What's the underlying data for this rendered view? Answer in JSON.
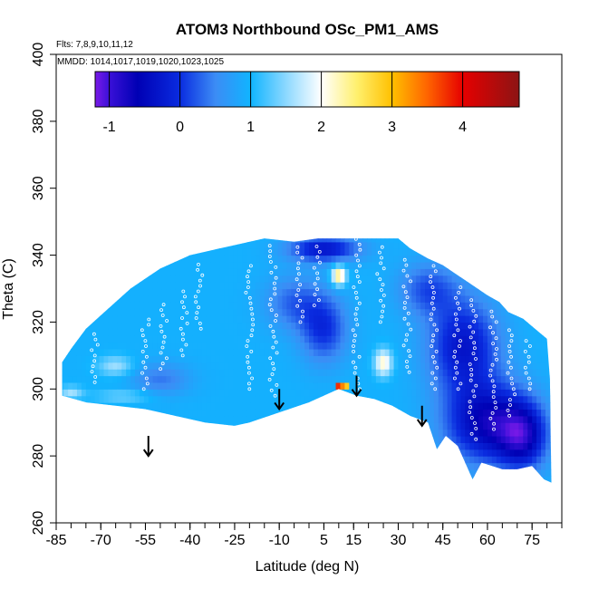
{
  "chart_data": {
    "type": "heatmap",
    "title": "ATOM3 Northbound OSc_PM1_AMS",
    "subtitle_flights": "Flts: 7,8,9,10,11,12",
    "subtitle_dates": "MMDD: 1014,1017,1019,1020,1023,1025",
    "xlabel": "Latitude (deg N)",
    "ylabel": "Theta (C)",
    "xlim": [
      -85,
      85
    ],
    "ylim": [
      260,
      400
    ],
    "x_ticks": [
      -85,
      -70,
      -55,
      -40,
      -25,
      -10,
      5,
      15,
      30,
      45,
      60,
      75
    ],
    "x_tick_labels": [
      "-85",
      "-70",
      "-55",
      "-40",
      "-25",
      "-10",
      "5",
      "15",
      "30",
      "45",
      "60",
      "75"
    ],
    "x_minor_step": 5,
    "y_ticks": [
      260,
      280,
      300,
      320,
      340,
      360,
      380,
      400
    ],
    "y_tick_labels": [
      "260",
      "280",
      "300",
      "320",
      "340",
      "360",
      "380",
      "400"
    ],
    "colorbar": {
      "range": [
        -1.2,
        4.8
      ],
      "ticks": [
        -1,
        0,
        1,
        2,
        3,
        4
      ],
      "tick_labels": [
        "-1",
        "0",
        "1",
        "2",
        "3",
        "4"
      ],
      "stops": [
        {
          "v": -1.2,
          "c": "#7a1ae8"
        },
        {
          "v": -1.0,
          "c": "#3a10d8"
        },
        {
          "v": -0.6,
          "c": "#0000b4"
        },
        {
          "v": 0.0,
          "c": "#0a2ce0"
        },
        {
          "v": 0.5,
          "c": "#3c8cf5"
        },
        {
          "v": 1.0,
          "c": "#10b4ff"
        },
        {
          "v": 1.5,
          "c": "#8cd8ff"
        },
        {
          "v": 2.0,
          "c": "#ffffff"
        },
        {
          "v": 2.5,
          "c": "#fff06e"
        },
        {
          "v": 3.0,
          "c": "#ffc000"
        },
        {
          "v": 3.5,
          "c": "#ff6400"
        },
        {
          "v": 4.0,
          "c": "#e60000"
        },
        {
          "v": 4.8,
          "c": "#8c1414"
        }
      ]
    },
    "coverage_envelope": [
      [
        -83,
        298
      ],
      [
        -83,
        308
      ],
      [
        -80,
        312
      ],
      [
        -75,
        318
      ],
      [
        -70,
        322
      ],
      [
        -65,
        326
      ],
      [
        -60,
        330
      ],
      [
        -55,
        333
      ],
      [
        -50,
        336
      ],
      [
        -45,
        338
      ],
      [
        -40,
        340
      ],
      [
        -35,
        341
      ],
      [
        -30,
        342
      ],
      [
        -25,
        343
      ],
      [
        -15,
        345
      ],
      [
        -5,
        344
      ],
      [
        3,
        345
      ],
      [
        10,
        345
      ],
      [
        20,
        345
      ],
      [
        30,
        345
      ],
      [
        34,
        342
      ],
      [
        40,
        339
      ],
      [
        45,
        337
      ],
      [
        50,
        334
      ],
      [
        55,
        331
      ],
      [
        60,
        328
      ],
      [
        64,
        326
      ],
      [
        67,
        323
      ],
      [
        72,
        321
      ],
      [
        76,
        318
      ],
      [
        80,
        315
      ],
      [
        81,
        303
      ],
      [
        81.5,
        272
      ],
      [
        79,
        273
      ],
      [
        75,
        277
      ],
      [
        70,
        276
      ],
      [
        65,
        276
      ],
      [
        58,
        278
      ],
      [
        55,
        273
      ],
      [
        50,
        283
      ],
      [
        46,
        286
      ],
      [
        43,
        282
      ],
      [
        40,
        290
      ],
      [
        34,
        292
      ],
      [
        28,
        295
      ],
      [
        22,
        297
      ],
      [
        16,
        298
      ],
      [
        10,
        300
      ],
      [
        0,
        296
      ],
      [
        -10,
        293
      ],
      [
        -20,
        290
      ],
      [
        -25,
        289
      ],
      [
        -35,
        290
      ],
      [
        -45,
        292
      ],
      [
        -55,
        294
      ],
      [
        -65,
        295
      ],
      [
        -75,
        296
      ],
      [
        -83,
        298
      ]
    ],
    "base_value": 0.95,
    "value_features": [
      {
        "lat": 60,
        "theta": 290,
        "value": -0.6,
        "spread_lat": 14,
        "spread_theta": 12
      },
      {
        "lat": 72,
        "theta": 286,
        "value": -0.4,
        "spread_lat": 8,
        "spread_theta": 10
      },
      {
        "lat": 52,
        "theta": 313,
        "value": -0.3,
        "spread_lat": 12,
        "spread_theta": 14
      },
      {
        "lat": 5,
        "theta": 342,
        "value": -0.3,
        "spread_lat": 12,
        "spread_theta": 4
      },
      {
        "lat": 5,
        "theta": 318,
        "value": 0.0,
        "spread_lat": 8,
        "spread_theta": 10
      },
      {
        "lat": 40,
        "theta": 330,
        "value": 0.2,
        "spread_lat": 10,
        "spread_theta": 8
      },
      {
        "lat": -50,
        "theta": 303,
        "value": 0.4,
        "spread_lat": 10,
        "spread_theta": 5
      },
      {
        "lat": -5,
        "theta": 326,
        "value": 0.3,
        "spread_lat": 10,
        "spread_theta": 8
      },
      {
        "lat": 10,
        "theta": 334,
        "value": 2.6,
        "spread_lat": 2.5,
        "spread_theta": 3
      },
      {
        "lat": 25,
        "theta": 308,
        "value": 2.2,
        "spread_lat": 3,
        "spread_theta": 4
      },
      {
        "lat": -65,
        "theta": 307,
        "value": 1.6,
        "spread_lat": 6,
        "spread_theta": 3
      },
      {
        "lat": -80,
        "theta": 299,
        "value": 1.6,
        "spread_lat": 4,
        "spread_theta": 2
      },
      {
        "lat": -62,
        "theta": 298,
        "value": 1.4,
        "spread_lat": 10,
        "spread_theta": 2
      }
    ],
    "hotspot": {
      "lat_range": [
        9,
        13
      ],
      "theta_range": [
        299.6,
        301.8
      ],
      "value": 4.0
    },
    "sample_tracks": [
      {
        "lat": -72,
        "theta_range": [
          302,
          318
        ]
      },
      {
        "lat": -55,
        "theta_range": [
          300,
          322
        ]
      },
      {
        "lat": -49,
        "theta_range": [
          306,
          326
        ]
      },
      {
        "lat": -42,
        "theta_range": [
          310,
          330
        ]
      },
      {
        "lat": -37,
        "theta_range": [
          318,
          338
        ]
      },
      {
        "lat": -20,
        "theta_range": [
          300,
          338
        ]
      },
      {
        "lat": -12,
        "theta_range": [
          298,
          344
        ]
      },
      {
        "lat": -3,
        "theta_range": [
          320,
          344
        ]
      },
      {
        "lat": 3,
        "theta_range": [
          325,
          343
        ]
      },
      {
        "lat": 16,
        "theta_range": [
          300,
          345
        ]
      },
      {
        "lat": 24,
        "theta_range": [
          320,
          344
        ]
      },
      {
        "lat": 33,
        "theta_range": [
          305,
          340
        ]
      },
      {
        "lat": 42,
        "theta_range": [
          300,
          338
        ]
      },
      {
        "lat": 50,
        "theta_range": [
          300,
          332
        ]
      },
      {
        "lat": 55,
        "theta_range": [
          285,
          328
        ]
      },
      {
        "lat": 62,
        "theta_range": [
          288,
          324
        ]
      },
      {
        "lat": 68,
        "theta_range": [
          292,
          318
        ]
      },
      {
        "lat": 74,
        "theta_range": [
          300,
          316
        ]
      }
    ],
    "arrows": [
      {
        "lat": -54,
        "theta_top": 286,
        "theta_bottom": 280
      },
      {
        "lat": -10,
        "theta_top": 300,
        "theta_bottom": 294
      },
      {
        "lat": 16,
        "theta_top": 304,
        "theta_bottom": 298
      },
      {
        "lat": 38,
        "theta_top": 295,
        "theta_bottom": 289
      }
    ],
    "grid": false,
    "legend": "colorbar-top"
  }
}
